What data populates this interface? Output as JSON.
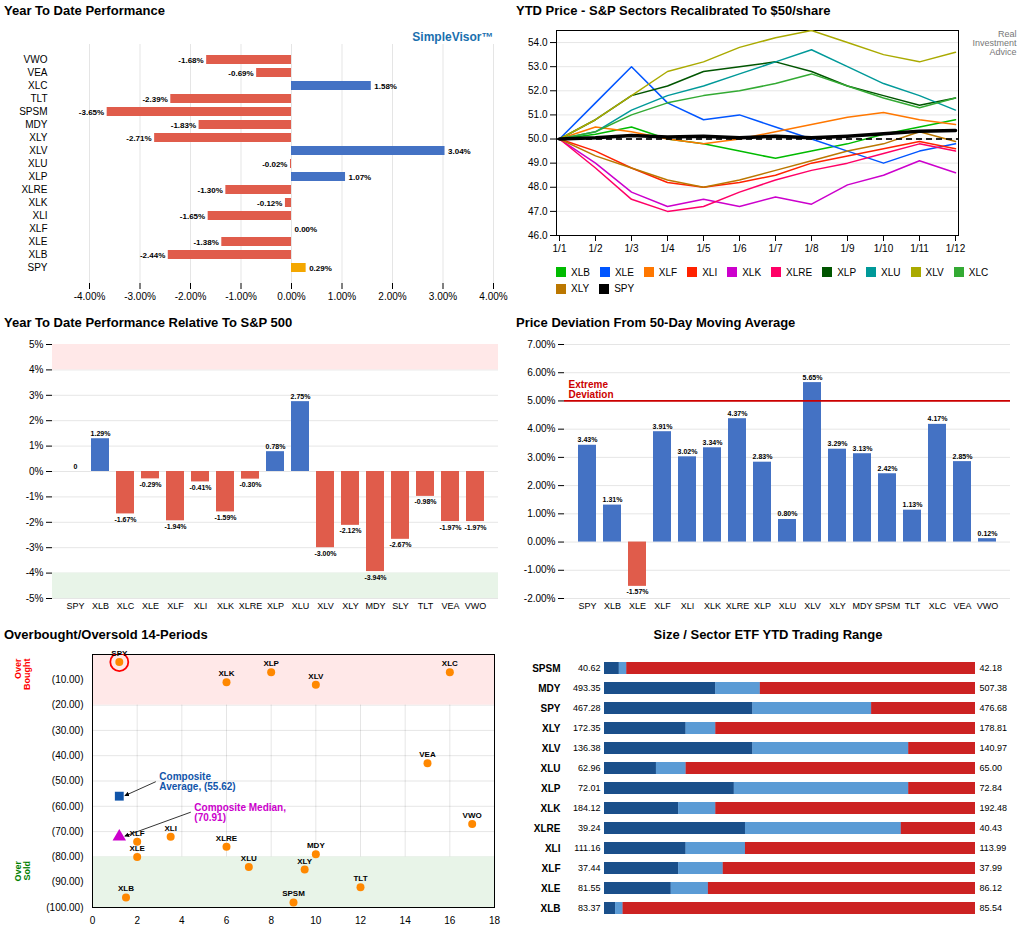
{
  "chart_data": [
    {
      "type": "bar",
      "orientation": "horizontal",
      "title": "Year To Date Performance",
      "annotation": "SimpleVisor™",
      "categories": [
        "VWO",
        "VEA",
        "XLC",
        "TLT",
        "SPSM",
        "MDY",
        "XLY",
        "XLV",
        "XLU",
        "XLP",
        "XLRE",
        "XLK",
        "XLI",
        "XLF",
        "XLE",
        "XLB",
        "SPY"
      ],
      "values": [
        -1.68,
        -0.69,
        1.58,
        -2.39,
        -3.65,
        -1.83,
        -2.71,
        3.04,
        -0.02,
        1.07,
        -1.3,
        -0.12,
        -1.65,
        0.0,
        -1.38,
        -2.44,
        0.29
      ],
      "value_labels": [
        "-1.68%",
        "-0.69%",
        "1.58%",
        "-2.39%",
        "-3.65%",
        "-1.83%",
        "-2.71%",
        "3.04%",
        "-0.02%",
        "1.07%",
        "-1.30%",
        "-0.12%",
        "-1.65%",
        "0.00%",
        "-1.38%",
        "-2.44%",
        "0.29%"
      ],
      "colors": [
        "#e05c4b",
        "#e05c4b",
        "#4472c4",
        "#e05c4b",
        "#e05c4b",
        "#e05c4b",
        "#e05c4b",
        "#4472c4",
        "#e05c4b",
        "#4472c4",
        "#e05c4b",
        "#e05c4b",
        "#e05c4b",
        "#4472c4",
        "#e05c4b",
        "#e05c4b",
        "#f4a700"
      ],
      "xlim": [
        -4,
        4
      ],
      "xticks": [
        {
          "value": -4,
          "label": "-4.00%"
        },
        {
          "value": -3,
          "label": "-3.00%"
        },
        {
          "value": -2,
          "label": "-2.00%"
        },
        {
          "value": -1,
          "label": "-1.00%"
        },
        {
          "value": 0,
          "label": "0.00%"
        },
        {
          "value": 1,
          "label": "1.00%"
        },
        {
          "value": 2,
          "label": "2.00%"
        },
        {
          "value": 3,
          "label": "3.00%"
        },
        {
          "value": 4,
          "label": "4.00%"
        }
      ],
      "grid": true,
      "data_labels": true
    },
    {
      "type": "line",
      "title": "YTD Price - S&P Sectors Recalibrated To $50/share",
      "annotation": "Real\nInvestment\nAdvice",
      "categories": [
        "1/1",
        "1/2",
        "1/3",
        "1/4",
        "1/5",
        "1/6",
        "1/7",
        "1/8",
        "1/9",
        "1/10",
        "1/11",
        "1/12"
      ],
      "series": [
        {
          "name": "XLB",
          "color": "#00bb00",
          "line_style": "solid",
          "values": [
            50,
            50.2,
            50.5,
            50.0,
            49.8,
            49.5,
            49.2,
            49.5,
            49.8,
            50.2,
            50.5,
            50.8
          ]
        },
        {
          "name": "XLE",
          "color": "#0055ff",
          "line_style": "solid",
          "values": [
            50,
            51.5,
            53.0,
            51.5,
            50.8,
            51.0,
            50.5,
            50.0,
            49.5,
            49.0,
            49.5,
            49.8
          ]
        },
        {
          "name": "XLF",
          "color": "#ff7700",
          "line_style": "solid",
          "values": [
            50,
            50.5,
            50.3,
            50.0,
            49.8,
            50.0,
            50.3,
            50.6,
            50.9,
            51.1,
            50.8,
            50.6
          ]
        },
        {
          "name": "XLI",
          "color": "#ff2200",
          "line_style": "solid",
          "values": [
            50,
            49.5,
            48.8,
            48.2,
            48.0,
            48.2,
            48.5,
            49.0,
            49.3,
            49.6,
            49.9,
            49.6
          ]
        },
        {
          "name": "XLK",
          "color": "#cc00cc",
          "line_style": "solid",
          "values": [
            50,
            49.0,
            47.8,
            47.2,
            47.5,
            47.2,
            47.6,
            47.3,
            48.1,
            48.5,
            49.1,
            48.6
          ]
        },
        {
          "name": "XLRE",
          "color": "#ff0066",
          "line_style": "solid",
          "values": [
            50,
            48.8,
            47.5,
            47.0,
            47.2,
            47.8,
            48.3,
            48.7,
            49.0,
            49.4,
            49.8,
            49.5
          ]
        },
        {
          "name": "XLP",
          "color": "#005500",
          "line_style": "solid",
          "values": [
            50,
            50.8,
            51.8,
            52.2,
            52.8,
            53.0,
            53.2,
            52.8,
            52.2,
            51.8,
            51.4,
            51.7
          ]
        },
        {
          "name": "XLU",
          "color": "#009999",
          "line_style": "solid",
          "values": [
            50,
            50.3,
            51.2,
            51.8,
            52.2,
            52.7,
            53.2,
            53.7,
            53.0,
            52.3,
            51.8,
            51.2
          ]
        },
        {
          "name": "XLV",
          "color": "#aaaa00",
          "line_style": "solid",
          "values": [
            50,
            50.8,
            51.8,
            52.8,
            53.2,
            53.8,
            54.2,
            54.5,
            54.0,
            53.5,
            53.2,
            53.6
          ]
        },
        {
          "name": "XLC",
          "color": "#33aa33",
          "line_style": "solid",
          "values": [
            50,
            50.3,
            51.0,
            51.5,
            51.8,
            52.0,
            52.3,
            52.7,
            52.2,
            51.7,
            51.3,
            51.7
          ]
        },
        {
          "name": "XLY",
          "color": "#bb7700",
          "line_style": "solid",
          "values": [
            50,
            49.3,
            48.8,
            48.3,
            48.0,
            48.3,
            48.7,
            49.1,
            49.5,
            49.8,
            50.3,
            49.9
          ]
        },
        {
          "name": "SPY",
          "color": "#000000",
          "line_style": "thick",
          "values": [
            50,
            50.05,
            50.15,
            50.08,
            50.12,
            50.05,
            50.12,
            50.05,
            50.12,
            50.22,
            50.32,
            50.35
          ]
        }
      ],
      "reference_y": 50,
      "ylim": [
        46.0,
        54.5
      ],
      "yticks": [
        {
          "value": 46,
          "label": "46.0"
        },
        {
          "value": 47,
          "label": "47.0"
        },
        {
          "value": 48,
          "label": "48.0"
        },
        {
          "value": 49,
          "label": "49.0"
        },
        {
          "value": 50,
          "label": "50.0"
        },
        {
          "value": 51,
          "label": "51.0"
        },
        {
          "value": 52,
          "label": "52.0"
        },
        {
          "value": 53,
          "label": "53.0"
        },
        {
          "value": 54,
          "label": "54.0"
        }
      ],
      "grid": true,
      "legend": "bottom"
    },
    {
      "type": "bar",
      "title": "Year To Date Performance Relative To S&P 500",
      "categories": [
        "SPY",
        "XLB",
        "XLC",
        "XLE",
        "XLF",
        "XLI",
        "XLK",
        "XLRE",
        "XLP",
        "XLU",
        "XLV",
        "XLY",
        "MDY",
        "SLY",
        "TLT",
        "VEA",
        "VWO"
      ],
      "values": [
        0,
        1.29,
        -1.67,
        -0.29,
        -1.94,
        -0.41,
        -1.59,
        -0.3,
        0.78,
        2.75,
        -3.0,
        -2.12,
        -3.94,
        -2.67,
        -0.98,
        -1.97,
        -1.97
      ],
      "value_labels": [
        "0",
        "1.29%",
        "-1.67%",
        "-0.29%",
        "-1.94%",
        "-0.41%",
        "-1.59%",
        "-0.30%",
        "0.78%",
        "2.75%",
        "-3.00%",
        "-2.12%",
        "-3.94%",
        "-2.67%",
        "-0.98%",
        "-1.97%",
        "-1.97%"
      ],
      "colors": [
        "#4472c4",
        "#4472c4",
        "#e05c4b",
        "#e05c4b",
        "#e05c4b",
        "#e05c4b",
        "#e05c4b",
        "#e05c4b",
        "#4472c4",
        "#4472c4",
        "#e05c4b",
        "#e05c4b",
        "#e05c4b",
        "#e05c4b",
        "#e05c4b",
        "#e05c4b",
        "#e05c4b"
      ],
      "bands": [
        {
          "y1": 4.0,
          "y2": 5.0,
          "color": "#ffe8e8"
        },
        {
          "y1": -5.0,
          "y2": -4.0,
          "color": "#e8f4e8"
        }
      ],
      "ylim": [
        -5.0,
        5.0
      ],
      "yticks": [
        {
          "value": -5,
          "label": "-5%"
        },
        {
          "value": -4,
          "label": "-4%"
        },
        {
          "value": -3,
          "label": "-3%"
        },
        {
          "value": -2,
          "label": "-2%"
        },
        {
          "value": -1,
          "label": "-1%"
        },
        {
          "value": 0,
          "label": "0%"
        },
        {
          "value": 1,
          "label": "1%"
        },
        {
          "value": 2,
          "label": "2%"
        },
        {
          "value": 3,
          "label": "3%"
        },
        {
          "value": 4,
          "label": "4%"
        },
        {
          "value": 5,
          "label": "5%"
        }
      ],
      "grid": true,
      "data_labels": true
    },
    {
      "type": "bar",
      "title": "Price Deviation From 50-Day Moving Average",
      "categories": [
        "SPY",
        "XLB",
        "XLE",
        "XLF",
        "XLI",
        "XLK",
        "XLRE",
        "XLP",
        "XLU",
        "XLV",
        "XLY",
        "MDY",
        "SPSM",
        "TLT",
        "XLC",
        "VEA",
        "VWO"
      ],
      "values": [
        3.43,
        1.31,
        -1.57,
        3.91,
        3.02,
        3.34,
        4.37,
        2.83,
        0.8,
        5.65,
        3.29,
        3.13,
        2.42,
        1.13,
        4.17,
        2.85,
        0.12
      ],
      "value_labels": [
        "3.43%",
        "1.31%",
        "-1.57%",
        "3.91%",
        "3.02%",
        "3.34%",
        "4.37%",
        "2.83%",
        "0.80%",
        "5.65%",
        "3.29%",
        "3.13%",
        "2.42%",
        "1.13%",
        "4.17%",
        "2.85%",
        "0.12%"
      ],
      "colors": [
        "#4472c4",
        "#4472c4",
        "#e05c4b",
        "#4472c4",
        "#4472c4",
        "#4472c4",
        "#4472c4",
        "#4472c4",
        "#4472c4",
        "#4472c4",
        "#4472c4",
        "#4472c4",
        "#4472c4",
        "#4472c4",
        "#4472c4",
        "#4472c4",
        "#4472c4"
      ],
      "threshold": {
        "y": 5.0,
        "label": "Extreme\nDeviation",
        "color": "#cc0000"
      },
      "ylim": [
        -2.0,
        7.0
      ],
      "yticks": [
        {
          "value": -2,
          "label": "-2.00%"
        },
        {
          "value": -1,
          "label": "-1.00%"
        },
        {
          "value": 0,
          "label": "0.00%"
        },
        {
          "value": 1,
          "label": "1.00%"
        },
        {
          "value": 2,
          "label": "2.00%"
        },
        {
          "value": 3,
          "label": "3.00%"
        },
        {
          "value": 4,
          "label": "4.00%"
        },
        {
          "value": 5,
          "label": "5.00%"
        },
        {
          "value": 6,
          "label": "6.00%"
        },
        {
          "value": 7,
          "label": "7.00%"
        }
      ],
      "grid": true,
      "data_labels": true
    },
    {
      "type": "scatter",
      "title": "Overbought/Oversold 14-Periods",
      "labels": [
        "SPY",
        "XLK",
        "XLP",
        "XLV",
        "XLC",
        "VEA",
        "VWO",
        "XLF",
        "XLI",
        "XLRE",
        "XLE",
        "XLU",
        "XLY",
        "MDY",
        "TLT",
        "SPSM",
        "XLB"
      ],
      "x": [
        1.2,
        6,
        8,
        10,
        16,
        15,
        17,
        2,
        3.5,
        6,
        2,
        7,
        9.5,
        10,
        12,
        9,
        1.5
      ],
      "y": [
        -3,
        -11,
        -7,
        -12,
        -7,
        -43,
        -67,
        -74,
        -72,
        -76,
        -80,
        -84,
        -85,
        -79,
        -92,
        -98,
        -96
      ],
      "circled": [
        true,
        false,
        false,
        false,
        false,
        false,
        false,
        false,
        false,
        false,
        false,
        false,
        false,
        false,
        false,
        false,
        false
      ],
      "color": "#ff8800",
      "composites": [
        {
          "x": 1.2,
          "y": -56,
          "label": "Composite\nAverage, (55.62)",
          "color": "#1155aa",
          "marker": "square"
        },
        {
          "x": 1.2,
          "y": -72,
          "label": "Composite Median,\n(70.91)",
          "color": "#cc00cc",
          "marker": "triangle"
        }
      ],
      "bands": [
        {
          "y1": -20,
          "y2": 0,
          "color": "#ffe8e8",
          "label": "Over\nBought",
          "label_color": "red"
        },
        {
          "y1": -100,
          "y2": -80,
          "color": "#e8f4e8",
          "label": "Over\nSold",
          "label_color": "green"
        }
      ],
      "xlim": [
        0,
        18
      ],
      "xticks": [
        0,
        2,
        4,
        6,
        8,
        10,
        12,
        14,
        16,
        18
      ],
      "ylim": [
        -100,
        0
      ],
      "yticks": [
        {
          "value": -10,
          "label": "(10.00)"
        },
        {
          "value": -20,
          "label": "(20.00)"
        },
        {
          "value": -30,
          "label": "(30.00)"
        },
        {
          "value": -40,
          "label": "(40.00)"
        },
        {
          "value": -50,
          "label": "(50.00)"
        },
        {
          "value": -60,
          "label": "(60.00)"
        },
        {
          "value": -70,
          "label": "(70.00)"
        },
        {
          "value": -80,
          "label": "(80.00)"
        },
        {
          "value": -90,
          "label": "(90.00)"
        },
        {
          "value": -100,
          "label": "(100.00)"
        }
      ],
      "grid": true
    },
    {
      "type": "range",
      "orientation": "horizontal",
      "title": "Size / Sector ETF YTD Trading Range",
      "categories": [
        "SPSM",
        "MDY",
        "SPY",
        "XLY",
        "XLV",
        "XLU",
        "XLP",
        "XLK",
        "XLRE",
        "XLI",
        "XLF",
        "XLE",
        "XLB"
      ],
      "left_labels": [
        "40.62",
        "493.35",
        "467.28",
        "172.35",
        "136.38",
        "62.96",
        "72.01",
        "184.12",
        "39.24",
        "111.16",
        "37.44",
        "81.55",
        "83.37"
      ],
      "right_labels": [
        "42.18",
        "507.38",
        "476.68",
        "178.81",
        "140.97",
        "65.00",
        "72.84",
        "192.48",
        "40.43",
        "113.99",
        "37.99",
        "86.12",
        "85.54"
      ],
      "dark_end": [
        0.04,
        0.3,
        0.4,
        0.22,
        0.4,
        0.14,
        0.35,
        0.2,
        0.38,
        0.22,
        0.2,
        0.18,
        0.03
      ],
      "light_end": [
        0.06,
        0.42,
        0.72,
        0.3,
        0.82,
        0.22,
        0.82,
        0.3,
        0.8,
        0.38,
        0.32,
        0.28,
        0.05
      ],
      "red_start": [
        0.06,
        0.42,
        0.72,
        0.3,
        0.82,
        0.22,
        0.82,
        0.3,
        0.8,
        0.38,
        0.32,
        0.28,
        0.05
      ],
      "color": {
        "dark": "#1a4f8a",
        "mid": "#5b9bd5",
        "light": "#aaccee",
        "red": "#cc2222"
      },
      "xlim": [
        0,
        1
      ],
      "tick_labels": "y",
      "grid": false
    }
  ]
}
